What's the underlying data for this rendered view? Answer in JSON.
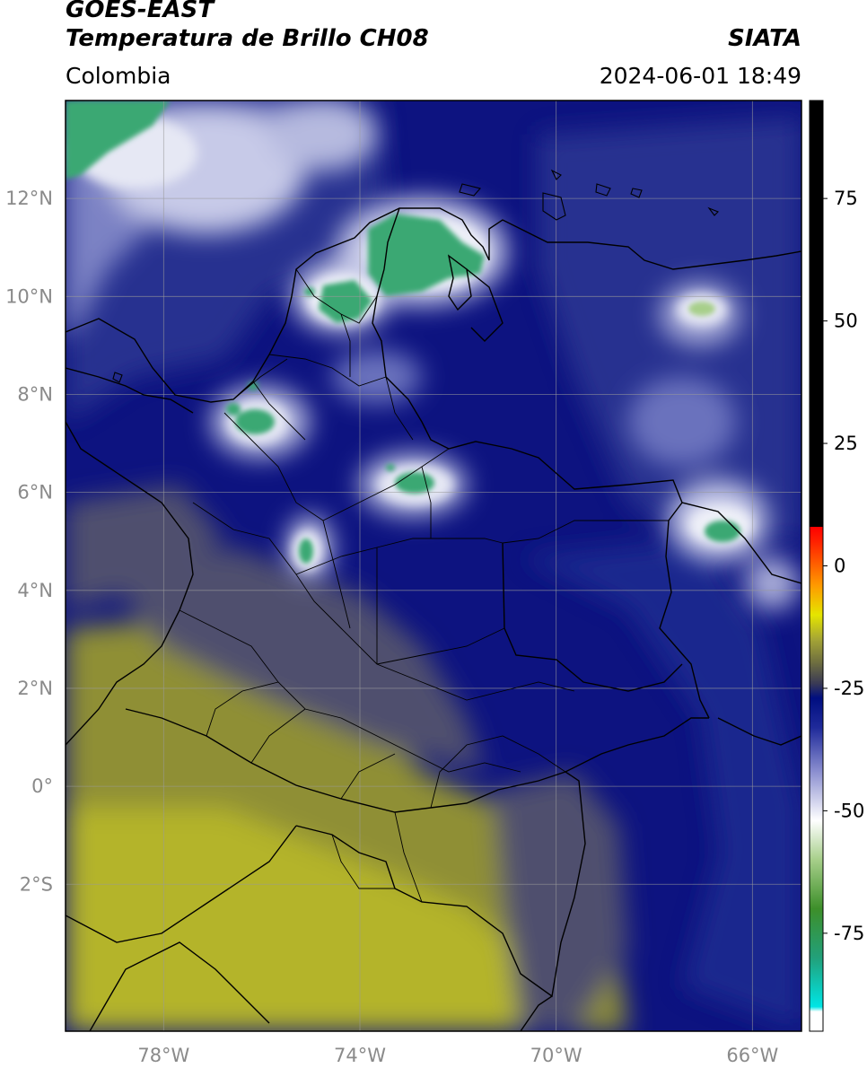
{
  "header": {
    "satellite": "GOES-EAST",
    "product": "Temperatura de Brillo CH08",
    "organization": "SIATA",
    "region": "Colombia",
    "timestamp": "2024-06-01 18:49"
  },
  "map": {
    "lon_range": [
      -80,
      -65
    ],
    "lat_range": [
      -5,
      14
    ],
    "grid": true,
    "lon_ticks": [
      {
        "value": -78,
        "label": "78°W"
      },
      {
        "value": -74,
        "label": "74°W"
      },
      {
        "value": -70,
        "label": "70°W"
      },
      {
        "value": -66,
        "label": "66°W"
      }
    ],
    "lat_ticks": [
      {
        "value": 12,
        "label": "12°N"
      },
      {
        "value": 10,
        "label": "10°N"
      },
      {
        "value": 8,
        "label": "8°N"
      },
      {
        "value": 6,
        "label": "6°N"
      },
      {
        "value": 4,
        "label": "4°N"
      },
      {
        "value": 2,
        "label": "2°N"
      },
      {
        "value": 0,
        "label": "0°"
      },
      {
        "value": -2,
        "label": "2°S"
      }
    ]
  },
  "colorbar": {
    "range": [
      -95,
      95
    ],
    "ticks": [
      {
        "value": 75,
        "label": "75"
      },
      {
        "value": 50,
        "label": "50"
      },
      {
        "value": 25,
        "label": "25"
      },
      {
        "value": 0,
        "label": "0"
      },
      {
        "value": -25,
        "label": "-25"
      },
      {
        "value": -50,
        "label": "-50"
      },
      {
        "value": -75,
        "label": "-75"
      }
    ],
    "stops": [
      {
        "value": -95,
        "color": "#ffffff"
      },
      {
        "value": -91,
        "color": "#ffffff"
      },
      {
        "value": -90,
        "color": "#00e5e5"
      },
      {
        "value": -80,
        "color": "#22a07a"
      },
      {
        "value": -70,
        "color": "#3d8f2a"
      },
      {
        "value": -60,
        "color": "#a7cf8a"
      },
      {
        "value": -52,
        "color": "#ffffff"
      },
      {
        "value": -42,
        "color": "#8b8fd0"
      },
      {
        "value": -33,
        "color": "#1f2a9a"
      },
      {
        "value": -27,
        "color": "#000e80"
      },
      {
        "value": -24,
        "color": "#3a3a55"
      },
      {
        "value": -20,
        "color": "#6b6b40"
      },
      {
        "value": -15,
        "color": "#a5a535"
      },
      {
        "value": -10,
        "color": "#e5e500"
      },
      {
        "value": -4,
        "color": "#ff9a00"
      },
      {
        "value": 5,
        "color": "#ff2000"
      },
      {
        "value": 8,
        "color": "#ff0000"
      },
      {
        "value": 8.01,
        "color": "#000000"
      },
      {
        "value": 95,
        "color": "#000000"
      }
    ]
  },
  "palette": {
    "deep_blue": "#0d1380",
    "mid_blue": "#2a3592",
    "light_blue": "#7c82c4",
    "cloud_white": "#e6e8f4",
    "cold_green": "#3aa873",
    "olive": "#8f8f35",
    "yellow_olive": "#b4b42a",
    "gray_blue": "#4f506e",
    "border": "#000000"
  }
}
